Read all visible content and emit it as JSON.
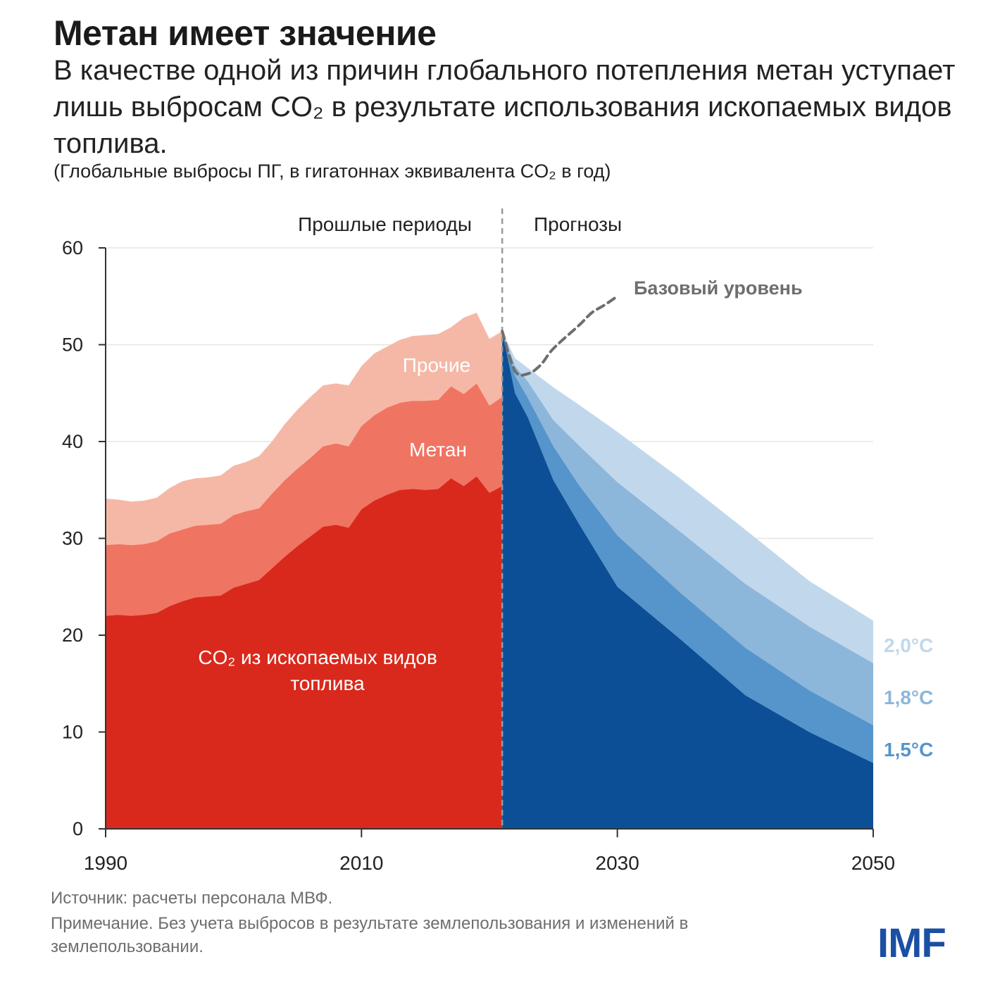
{
  "title": "Метан имеет значение",
  "subtitle": "В качестве одной из причин глобального потепления метан уступает лишь выбросам CO₂ в результате использования ископаемых видов топлива.",
  "units": "(Глобальные выбросы ПГ, в гигатоннах эквивалента CO₂ в год)",
  "source": "Источник: расчеты персонала МВФ.",
  "note": "Примечание. Без учета выбросов в результате землепользования и изменений в землепользовании.",
  "logo": "IMF",
  "colors": {
    "co2": "#d9291c",
    "methane": "#f07462",
    "other": "#f6b8a6",
    "proj_15": "#0c4f96",
    "proj_18": "#5595cb",
    "proj_20": "#8db6db",
    "proj_base": "#c1d8ec",
    "baseline_line": "#6e6e6e",
    "grid": "#e6e6dc",
    "axis": "#333333"
  },
  "chart_data": {
    "type": "area",
    "title": "",
    "xlabel": "",
    "ylabel": "",
    "xlim": [
      1990,
      2050
    ],
    "ylim": [
      0,
      60
    ],
    "x_ticks": [
      1990,
      2010,
      2030,
      2050
    ],
    "y_ticks": [
      0,
      10,
      20,
      30,
      40,
      50,
      60
    ],
    "grid": true,
    "divider_year": 2021,
    "period_labels": {
      "past": "Прошлые периоды",
      "future": "Прогнозы"
    },
    "historical": {
      "x": [
        1990,
        1991,
        1992,
        1993,
        1994,
        1995,
        1996,
        1997,
        1998,
        1999,
        2000,
        2001,
        2002,
        2003,
        2004,
        2005,
        2006,
        2007,
        2008,
        2009,
        2010,
        2011,
        2012,
        2013,
        2014,
        2015,
        2016,
        2017,
        2018,
        2019,
        2020,
        2021
      ],
      "series": [
        {
          "name": "CO₂ из ископаемых видов топлива",
          "label": "CO₂ из ископаемых видов топлива",
          "values": [
            22.0,
            22.1,
            22.0,
            22.1,
            22.3,
            23.0,
            23.5,
            23.9,
            24.0,
            24.1,
            24.9,
            25.3,
            25.7,
            26.9,
            28.1,
            29.2,
            30.2,
            31.2,
            31.4,
            31.1,
            33.0,
            33.9,
            34.5,
            35.0,
            35.1,
            35.0,
            35.1,
            36.2,
            35.4,
            36.4,
            34.7,
            35.4
          ]
        },
        {
          "name": "Метан",
          "label": "Метан",
          "values": [
            29.3,
            29.4,
            29.3,
            29.4,
            29.7,
            30.5,
            30.9,
            31.3,
            31.4,
            31.5,
            32.4,
            32.8,
            33.1,
            34.6,
            36.0,
            37.2,
            38.3,
            39.5,
            39.8,
            39.5,
            41.6,
            42.7,
            43.5,
            44.0,
            44.2,
            44.2,
            44.3,
            45.7,
            44.9,
            46.0,
            43.7,
            44.6
          ]
        },
        {
          "name": "Прочие",
          "label": "Прочие",
          "values": [
            34.1,
            34.0,
            33.8,
            33.9,
            34.2,
            35.2,
            35.9,
            36.2,
            36.3,
            36.5,
            37.5,
            37.9,
            38.5,
            40.0,
            41.8,
            43.3,
            44.6,
            45.8,
            46.0,
            45.8,
            47.8,
            49.1,
            49.8,
            50.5,
            50.9,
            51.0,
            51.1,
            51.8,
            52.8,
            53.3,
            50.6,
            51.4
          ]
        }
      ]
    },
    "projections": {
      "x": [
        2021,
        2022,
        2023,
        2025,
        2027,
        2030,
        2035,
        2040,
        2045,
        2050
      ],
      "series": [
        {
          "name": "1,5°C",
          "label": "1,5°C",
          "values": [
            51.4,
            45.0,
            42.5,
            36.0,
            31.5,
            25.0,
            19.5,
            13.8,
            10.0,
            6.8
          ]
        },
        {
          "name": "1,8°C",
          "label": "1,8°C",
          "values": [
            51.4,
            46.8,
            44.5,
            39.5,
            35.5,
            30.3,
            24.3,
            18.7,
            14.3,
            10.7
          ]
        },
        {
          "name": "2,0°C",
          "label": "2,0°C",
          "values": [
            51.4,
            47.8,
            46.2,
            42.2,
            39.6,
            35.8,
            30.6,
            25.3,
            20.9,
            17.1
          ]
        },
        {
          "name": "",
          "label": "",
          "values": [
            51.4,
            48.6,
            47.6,
            45.6,
            43.8,
            41.0,
            36.1,
            30.9,
            25.6,
            21.5
          ]
        }
      ]
    },
    "baseline": {
      "name": "Базовый уровень",
      "label": "Базовый уровень",
      "x": [
        2021,
        2022,
        2023,
        2024,
        2025,
        2027,
        2028,
        2029,
        2030
      ],
      "values": [
        51.4,
        47.3,
        47.0,
        47.9,
        49.6,
        52.0,
        53.3,
        54.1,
        55.0
      ]
    }
  }
}
